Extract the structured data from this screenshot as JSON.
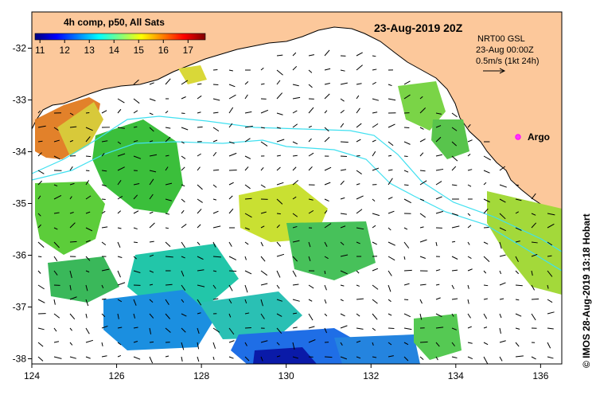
{
  "colorbar": {
    "title": "4h comp, p50, All Sats",
    "ticks": [
      "11",
      "12",
      "13",
      "14",
      "15",
      "16",
      "17"
    ],
    "vmin": 10.8,
    "vmax": 17.7,
    "colors": [
      "#00007f",
      "#0000ff",
      "#0080ff",
      "#00ffff",
      "#80ff80",
      "#ffff00",
      "#ff8000",
      "#ff0000",
      "#7f0000"
    ]
  },
  "map": {
    "date": "23-Aug-2019 20Z",
    "product": "NRT00 GSL",
    "current_time": "23-Aug 00:00Z",
    "scale_label": "0.5m/s (1kt 24h)",
    "argo_label": "Argo",
    "credit": "© IMOS 28-Aug-2019 13:18 Hobart",
    "land_color": "#fcc89b",
    "lon_ticks": [
      "124",
      "126",
      "128",
      "130",
      "132",
      "134",
      "136"
    ],
    "lat_ticks": [
      "-32",
      "-33",
      "-34",
      "-35",
      "-36",
      "-37",
      "-38"
    ],
    "lon_range": [
      124,
      136.5
    ],
    "lat_range": [
      -31.3,
      -38.1
    ]
  }
}
